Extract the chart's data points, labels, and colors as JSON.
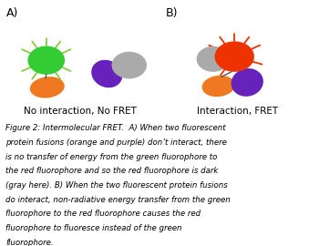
{
  "label_A": "A)",
  "label_B": "B)",
  "caption_A": "No interaction, No FRET",
  "caption_B": "Interaction, FRET",
  "figure_text_lines": [
    "Figure 2: Intermolecular FRET.  A) When two fluorescent",
    "protein fusions (orange and purple) don’t interact, there",
    "is no transfer of energy from the green fluorophore to",
    "the red fluorophore and so the red fluorophore is dark",
    "(gray here). B) When the two fluorescent protein fusions",
    "do interact, non-radiative energy transfer from the green",
    "fluorophore to the red fluorophore causes the red",
    "fluorophore to fluoresce instead of the green",
    "fluorophore."
  ],
  "green_color": "#33cc33",
  "orange_color": "#f07820",
  "purple_color": "#6622bb",
  "gray_color": "#aaaaaa",
  "red_color": "#ee3300",
  "bg_color": "#ffffff",
  "ray_color_green": "#88cc44",
  "ray_color_red": "#ee3300"
}
